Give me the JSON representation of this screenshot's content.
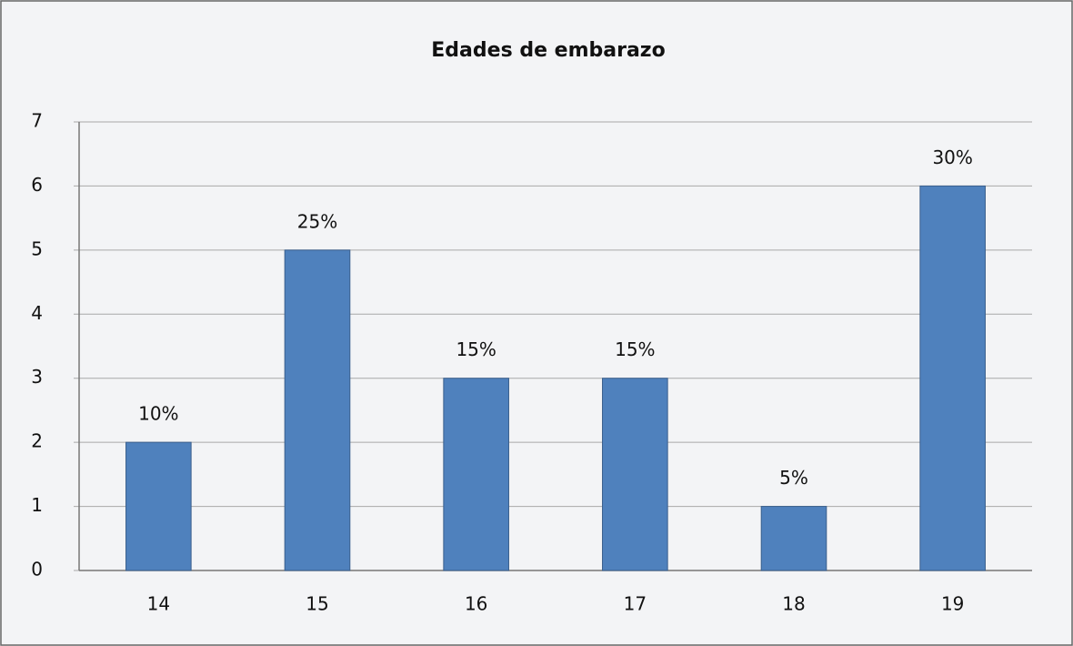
{
  "chart_data": {
    "type": "bar",
    "title": "Edades de embarazo",
    "categories": [
      "14",
      "15",
      "16",
      "17",
      "18",
      "19"
    ],
    "values": [
      2,
      5,
      3,
      3,
      1,
      6
    ],
    "data_labels": [
      "10%",
      "25%",
      "15%",
      "15%",
      "5%",
      "30%"
    ],
    "color": "#4f81bd",
    "ylim": [
      0,
      7
    ],
    "yticks": [
      0,
      1,
      2,
      3,
      4,
      5,
      6,
      7
    ],
    "grid": true
  }
}
